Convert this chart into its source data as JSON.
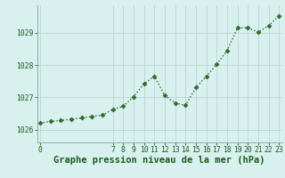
{
  "x": [
    0,
    1,
    2,
    3,
    4,
    5,
    6,
    7,
    8,
    9,
    10,
    11,
    12,
    13,
    14,
    15,
    16,
    17,
    18,
    19,
    20,
    21,
    22,
    23
  ],
  "y": [
    1026.2,
    1026.25,
    1026.28,
    1026.32,
    1026.36,
    1026.4,
    1026.45,
    1026.62,
    1026.72,
    1027.02,
    1027.42,
    1027.65,
    1027.05,
    1026.82,
    1026.75,
    1027.3,
    1027.65,
    1028.02,
    1028.45,
    1029.15,
    1029.15,
    1029.02,
    1029.22,
    1029.52
  ],
  "line_color": "#2d6a2d",
  "marker": "D",
  "marker_size": 2.5,
  "bg_color": "#d8f0ee",
  "grid_color": "#b8d8d5",
  "xlabel": "Graphe pression niveau de la mer (hPa)",
  "xlabel_fontsize": 7.5,
  "ylabel_ticks": [
    1026,
    1027,
    1028,
    1029
  ],
  "xticks": [
    0,
    7,
    8,
    9,
    10,
    11,
    12,
    13,
    14,
    15,
    16,
    17,
    18,
    19,
    20,
    21,
    22,
    23
  ],
  "xlim": [
    -0.3,
    23.3
  ],
  "ylim": [
    1025.6,
    1029.85
  ],
  "tick_fontsize": 5.8,
  "tick_color": "#1a5c1a",
  "spine_color": "#8ab8b5",
  "line_width": 1.0
}
